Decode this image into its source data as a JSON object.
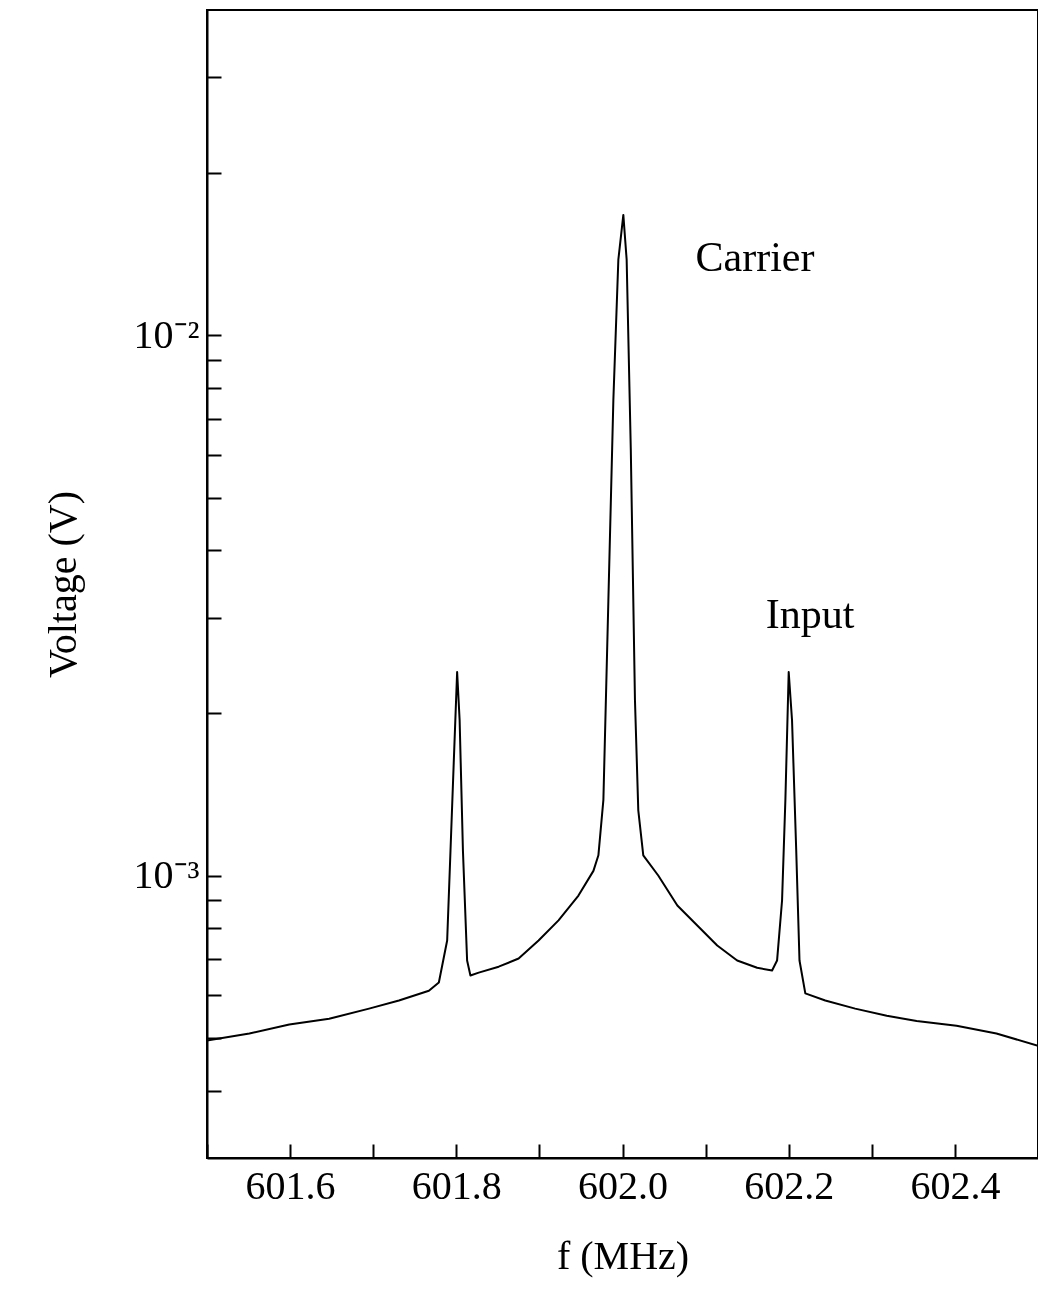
{
  "chart_data": {
    "type": "line",
    "xlabel": "f (MHz)",
    "ylabel": "Voltage (V)",
    "log": "y",
    "grid": false,
    "marker": "none",
    "line_style": "solid",
    "xlim": [
      601.5,
      602.5
    ],
    "ylim": [
      0.0003,
      0.04
    ],
    "xticks": [
      {
        "value": 601.5,
        "label": null
      },
      601.6,
      {
        "value": 601.7,
        "label": null
      },
      601.8,
      {
        "value": 601.9,
        "label": null
      },
      {
        "value": 602,
        "label": "602.0"
      },
      {
        "value": 602.1,
        "label": null
      },
      602.2,
      {
        "value": 602.3,
        "label": null
      },
      602.4
    ],
    "yticks": [
      {
        "value": 0.0004,
        "label": null
      },
      {
        "value": 0.0005,
        "label": null
      },
      {
        "value": 0.0006,
        "label": null
      },
      {
        "value": 0.0007,
        "label": null
      },
      {
        "value": 0.0008,
        "label": null
      },
      {
        "value": 0.0009,
        "label": null
      },
      {
        "value": 0.001,
        "label": "10⁻³"
      },
      {
        "value": 0.002,
        "label": null
      },
      {
        "value": 0.003,
        "label": null
      },
      {
        "value": 0.004,
        "label": null
      },
      {
        "value": 0.005,
        "label": null
      },
      {
        "value": 0.006,
        "label": null
      },
      {
        "value": 0.007,
        "label": null
      },
      {
        "value": 0.008,
        "label": null
      },
      {
        "value": 0.009,
        "label": null
      },
      {
        "value": 0.01,
        "label": "10⁻²"
      },
      {
        "value": 0.02,
        "label": null
      },
      {
        "value": 0.03,
        "label": null
      }
    ],
    "x": [
      601.5,
      601.551,
      601.599,
      601.647,
      601.695,
      601.731,
      601.767,
      601.779,
      601.789,
      601.793,
      601.797,
      601.801,
      601.804,
      601.808,
      601.813,
      601.817,
      601.827,
      601.851,
      601.875,
      601.899,
      601.923,
      601.947,
      601.965,
      601.971,
      601.977,
      601.983,
      601.989,
      601.995,
      602.001,
      602.005,
      602.01,
      602.015,
      602.019,
      602.025,
      602.043,
      602.066,
      602.09,
      602.114,
      602.138,
      602.162,
      602.18,
      602.186,
      602.192,
      602.196,
      602.2,
      602.204,
      602.209,
      602.213,
      602.22,
      602.244,
      602.28,
      602.318,
      602.354,
      602.402,
      602.45,
      602.5
    ],
    "series": [
      {
        "color": "#000000",
        "values": [
          0.000495,
          0.00051,
          0.00053,
          0.000543,
          0.000567,
          0.000587,
          0.000612,
          0.000634,
          0.000758,
          0.00111,
          0.00163,
          0.00238,
          0.00194,
          0.00111,
          0.000696,
          0.000653,
          0.000661,
          0.000678,
          0.000702,
          0.000758,
          0.000826,
          0.000918,
          0.00102,
          0.00109,
          0.00138,
          0.00323,
          0.00758,
          0.0138,
          0.0167,
          0.0138,
          0.00612,
          0.00211,
          0.00132,
          0.00109,
          0.001,
          0.00088,
          0.000808,
          0.000742,
          0.000696,
          0.000675,
          0.000667,
          0.000696,
          0.000899,
          0.00138,
          0.00238,
          0.00194,
          0.00112,
          0.000696,
          0.000605,
          0.000587,
          0.000567,
          0.00055,
          0.000538,
          0.000527,
          0.00051,
          0.000484
        ]
      }
    ],
    "annotations": [
      "Carrier",
      "Input"
    ]
  }
}
